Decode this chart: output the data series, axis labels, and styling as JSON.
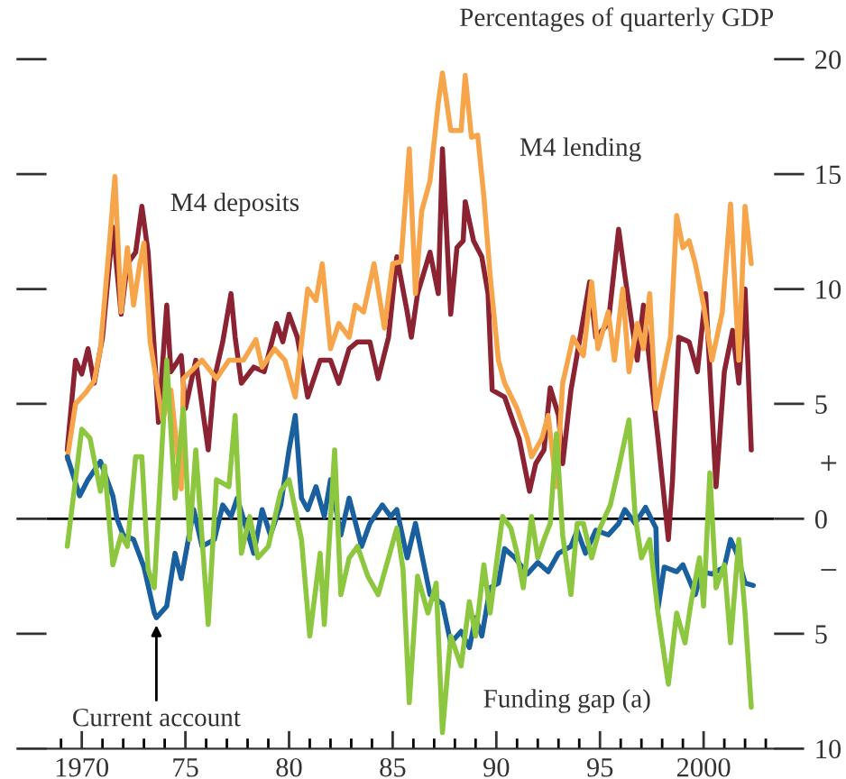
{
  "chart_data": {
    "type": "line",
    "ylabel": "Percentages of quarterly GDP",
    "xlim": [
      1968.3,
      2003.4
    ],
    "xticks": [
      1970,
      {
        "value": 1975,
        "label": "75"
      },
      {
        "value": 1980,
        "label": "80"
      },
      {
        "value": 1985,
        "label": "85"
      },
      {
        "value": 1990,
        "label": "90"
      },
      {
        "value": 1995,
        "label": "95"
      },
      2000
    ],
    "ylim": [
      -10,
      20
    ],
    "yticks": [
      {
        "value": -10,
        "label": "10"
      },
      {
        "value": -5,
        "label": "5"
      },
      0,
      5,
      10,
      15,
      20
    ],
    "tick_labels": "y2",
    "ref_lines": [
      {
        "axis": "y",
        "value": 0,
        "color": "#000000"
      }
    ],
    "annotations": [
      "+",
      "−",
      {
        "text": "Current account",
        "x": 1973.6,
        "y": -4.3
      }
    ],
    "series": [
      {
        "name": "M4 deposits",
        "color": "#8b2332",
        "x": [
          1969.3,
          1969.7,
          1970.0,
          1970.3,
          1970.6,
          1971.0,
          1971.5,
          1971.9,
          1972.2,
          1972.6,
          1972.9,
          1973.2,
          1973.5,
          1973.7,
          1974.1,
          1974.3,
          1974.8,
          1975.0,
          1975.5,
          1976.1,
          1976.4,
          1976.8,
          1977.2,
          1977.4,
          1977.7,
          1978.3,
          1978.8,
          1979.4,
          1979.7,
          1980.0,
          1980.4,
          1980.9,
          1981.5,
          1982.0,
          1982.4,
          1982.9,
          1983.3,
          1983.9,
          1984.3,
          1984.8,
          1985.2,
          1985.7,
          1985.9,
          1986.2,
          1986.8,
          1987.2,
          1987.4,
          1987.8,
          1988.1,
          1988.4,
          1988.5,
          1988.9,
          1989.3,
          1989.6,
          1989.8,
          1990.4,
          1990.9,
          1991.1,
          1991.6,
          1991.9,
          1992.3,
          1992.6,
          1993.0,
          1993.2,
          1993.6,
          1994.5,
          1994.8,
          1995.4,
          1995.9,
          1996.2,
          1996.5,
          1996.8,
          1997.1,
          1997.5,
          1997.8,
          1998.3,
          1998.5,
          1998.8,
          1999.3,
          1999.7,
          2000.1,
          2000.6,
          2001.0,
          2001.4,
          2001.7,
          2002.0,
          2002.3
        ],
        "values": [
          3.0,
          6.9,
          6.3,
          7.4,
          5.9,
          7.9,
          12.7,
          8.9,
          11.1,
          11.6,
          13.6,
          11.6,
          7.4,
          4.2,
          9.3,
          6.4,
          7.1,
          4.8,
          6.9,
          3.0,
          6.1,
          7.7,
          9.8,
          7.9,
          5.9,
          6.6,
          6.4,
          8.5,
          7.7,
          8.9,
          7.9,
          5.3,
          6.9,
          6.9,
          5.9,
          7.4,
          7.7,
          7.7,
          6.1,
          7.9,
          11.4,
          9.0,
          7.9,
          9.8,
          11.6,
          9.8,
          16.1,
          8.9,
          11.8,
          12.1,
          13.8,
          12.1,
          11.4,
          9.8,
          5.6,
          5.3,
          4.0,
          3.5,
          1.2,
          2.4,
          3.0,
          5.7,
          4.5,
          2.4,
          5.6,
          10.3,
          7.9,
          8.5,
          12.6,
          10.6,
          8.7,
          6.9,
          9.3,
          5.9,
          3.5,
          -0.9,
          1.7,
          7.9,
          7.7,
          6.4,
          9.8,
          1.4,
          6.4,
          8.2,
          5.9,
          10.0,
          3.0
        ]
      },
      {
        "name": "M4 lending",
        "color": "#f7a54a",
        "x": [
          1969.3,
          1969.7,
          1970.2,
          1970.6,
          1970.9,
          1971.3,
          1971.6,
          1971.9,
          1972.2,
          1972.5,
          1972.8,
          1973.0,
          1973.3,
          1973.9,
          1974.3,
          1974.8,
          1974.9,
          1975.8,
          1976.5,
          1977.1,
          1977.8,
          1978.4,
          1978.7,
          1979.3,
          1979.8,
          1980.3,
          1980.9,
          1981.3,
          1981.6,
          1982.0,
          1982.4,
          1982.9,
          1983.2,
          1983.6,
          1984.1,
          1984.6,
          1985.0,
          1985.4,
          1985.8,
          1986.1,
          1986.4,
          1986.8,
          1987.2,
          1987.4,
          1987.8,
          1988.3,
          1988.5,
          1988.8,
          1989.1,
          1989.4,
          1989.7,
          1990.1,
          1990.4,
          1991.0,
          1991.5,
          1991.7,
          1992.2,
          1992.5,
          1992.9,
          1993.2,
          1993.7,
          1994.2,
          1994.6,
          1994.9,
          1995.4,
          1995.7,
          1996.1,
          1996.4,
          1996.8,
          1997.1,
          1997.4,
          1997.7,
          1998.4,
          1998.7,
          1999.0,
          1999.3,
          1999.6,
          2000.0,
          2000.4,
          2000.9,
          2001.3,
          2001.7,
          2002.0,
          2002.3
        ],
        "values": [
          2.6,
          5.0,
          5.5,
          6.0,
          7.4,
          11.6,
          14.9,
          9.0,
          11.8,
          9.3,
          11.1,
          12.0,
          7.7,
          4.3,
          5.6,
          1.3,
          6.1,
          6.9,
          6.1,
          6.9,
          6.9,
          7.8,
          6.6,
          7.4,
          6.9,
          5.3,
          10.0,
          9.5,
          11.1,
          7.4,
          8.5,
          7.9,
          9.3,
          9.0,
          11.1,
          8.3,
          11.1,
          11.2,
          16.1,
          9.8,
          13.4,
          14.7,
          18.1,
          19.4,
          16.9,
          16.9,
          19.3,
          16.6,
          16.7,
          14.0,
          10.6,
          6.9,
          5.9,
          4.8,
          3.5,
          2.7,
          3.5,
          4.5,
          1.4,
          5.9,
          7.9,
          7.1,
          10.3,
          7.4,
          9.0,
          6.9,
          10.0,
          6.4,
          8.5,
          7.4,
          9.8,
          4.8,
          7.9,
          13.2,
          11.8,
          12.1,
          11.1,
          9.3,
          6.9,
          9.0,
          13.7,
          6.9,
          13.6,
          11.1
        ]
      },
      {
        "color": "#1a5f9e",
        "x": [
          1969.3,
          1969.9,
          1970.3,
          1970.9,
          1971.5,
          1971.7,
          1972.0,
          1972.5,
          1973.0,
          1973.5,
          1973.6,
          1974.1,
          1974.5,
          1974.8,
          1975.4,
          1975.8,
          1976.4,
          1976.8,
          1977.2,
          1977.5,
          1978.3,
          1978.7,
          1979.1,
          1979.6,
          1980.0,
          1980.3,
          1980.6,
          1980.9,
          1981.3,
          1981.7,
          1982.0,
          1982.5,
          1982.9,
          1983.5,
          1983.9,
          1984.5,
          1984.9,
          1985.2,
          1985.7,
          1986.1,
          1986.8,
          1987.4,
          1987.8,
          1988.3,
          1988.7,
          1989.0,
          1989.3,
          1989.7,
          1990.1,
          1990.4,
          1990.9,
          1991.5,
          1992.0,
          1992.5,
          1993.0,
          1993.6,
          1993.9,
          1994.3,
          1994.8,
          1995.4,
          1995.9,
          1996.2,
          1996.7,
          1997.2,
          1997.7,
          1997.8,
          1998.1,
          1998.7,
          1999.0,
          1999.6,
          1999.9,
          2000.4,
          2001.0,
          2001.3,
          2001.6,
          2002.0,
          2002.4
        ],
        "values": [
          2.7,
          1.0,
          1.7,
          2.5,
          1.0,
          0.0,
          -0.7,
          -0.9,
          -2.1,
          -4.1,
          -4.3,
          -3.8,
          -1.5,
          -2.6,
          0.4,
          -1.2,
          -0.9,
          0.6,
          0.1,
          0.9,
          -1.5,
          0.4,
          -0.7,
          0.6,
          3.0,
          4.5,
          0.9,
          0.4,
          1.4,
          0.1,
          1.7,
          -0.7,
          0.9,
          -1.2,
          -0.2,
          0.6,
          0.1,
          0.4,
          -1.7,
          -0.2,
          -3.3,
          -3.7,
          -5.4,
          -4.9,
          -5.6,
          -4.3,
          -5.1,
          -3.0,
          -2.8,
          -1.3,
          -1.7,
          -2.4,
          -1.9,
          -2.3,
          -1.5,
          -1.2,
          -0.5,
          -1.5,
          -0.5,
          -0.7,
          -0.2,
          0.4,
          -0.2,
          0.5,
          -0.4,
          -3.9,
          -2.1,
          -2.3,
          -2.0,
          -3.3,
          -2.3,
          -2.4,
          -2.1,
          -0.9,
          -1.5,
          -2.8,
          -2.9
        ]
      },
      {
        "name": "Funding gap (a)",
        "color": "#8dc63f",
        "x": [
          1969.3,
          1970.0,
          1970.4,
          1970.9,
          1971.1,
          1971.5,
          1971.9,
          1972.2,
          1972.6,
          1972.9,
          1973.2,
          1973.5,
          1974.1,
          1974.5,
          1974.9,
          1975.2,
          1975.5,
          1976.1,
          1976.5,
          1977.1,
          1977.4,
          1977.7,
          1978.1,
          1978.5,
          1979.0,
          1979.6,
          1980.0,
          1980.6,
          1981.0,
          1981.5,
          1981.7,
          1982.2,
          1982.5,
          1982.9,
          1983.3,
          1983.8,
          1984.3,
          1984.8,
          1985.2,
          1985.5,
          1985.8,
          1986.2,
          1986.7,
          1987.1,
          1987.4,
          1987.8,
          1988.3,
          1988.7,
          1989.0,
          1989.4,
          1989.7,
          1990.3,
          1990.7,
          1991.0,
          1991.3,
          1991.7,
          1992.0,
          1992.3,
          1992.6,
          1992.9,
          1993.2,
          1993.6,
          1993.9,
          1994.2,
          1994.6,
          1995.0,
          1995.5,
          1995.9,
          1996.4,
          1996.7,
          1997.0,
          1997.4,
          1997.8,
          1998.3,
          1998.7,
          1999.1,
          1999.4,
          1999.8,
          2000.0,
          2000.3,
          2000.6,
          2001.0,
          2001.3,
          2001.7,
          2002.0,
          2002.3
        ],
        "values": [
          -1.2,
          3.9,
          3.5,
          1.2,
          2.3,
          -2.0,
          -0.7,
          -1.2,
          2.7,
          2.7,
          -2.2,
          -3.0,
          6.9,
          0.9,
          4.8,
          -0.9,
          3.0,
          -4.6,
          1.7,
          1.4,
          4.5,
          -1.5,
          0.1,
          -1.7,
          -1.2,
          1.2,
          1.7,
          -0.9,
          -5.1,
          -1.5,
          -4.6,
          3.0,
          -3.3,
          -1.7,
          -1.2,
          -2.5,
          -3.3,
          -1.7,
          -0.4,
          -2.2,
          -8.0,
          -2.5,
          -4.1,
          -2.8,
          -9.3,
          -5.1,
          -6.4,
          -3.6,
          -5.1,
          -2.0,
          -4.1,
          0.1,
          -0.4,
          -1.5,
          -3.0,
          0.1,
          -1.7,
          -0.9,
          -0.2,
          3.7,
          -0.7,
          -3.3,
          -0.2,
          -0.2,
          -1.7,
          -0.4,
          0.6,
          2.2,
          4.3,
          0.1,
          -1.7,
          -0.9,
          -4.1,
          -7.2,
          -4.1,
          -5.4,
          -3.6,
          -1.7,
          -3.8,
          2.0,
          -3.0,
          -2.0,
          -5.4,
          -0.9,
          -4.1,
          -8.2
        ]
      }
    ]
  }
}
